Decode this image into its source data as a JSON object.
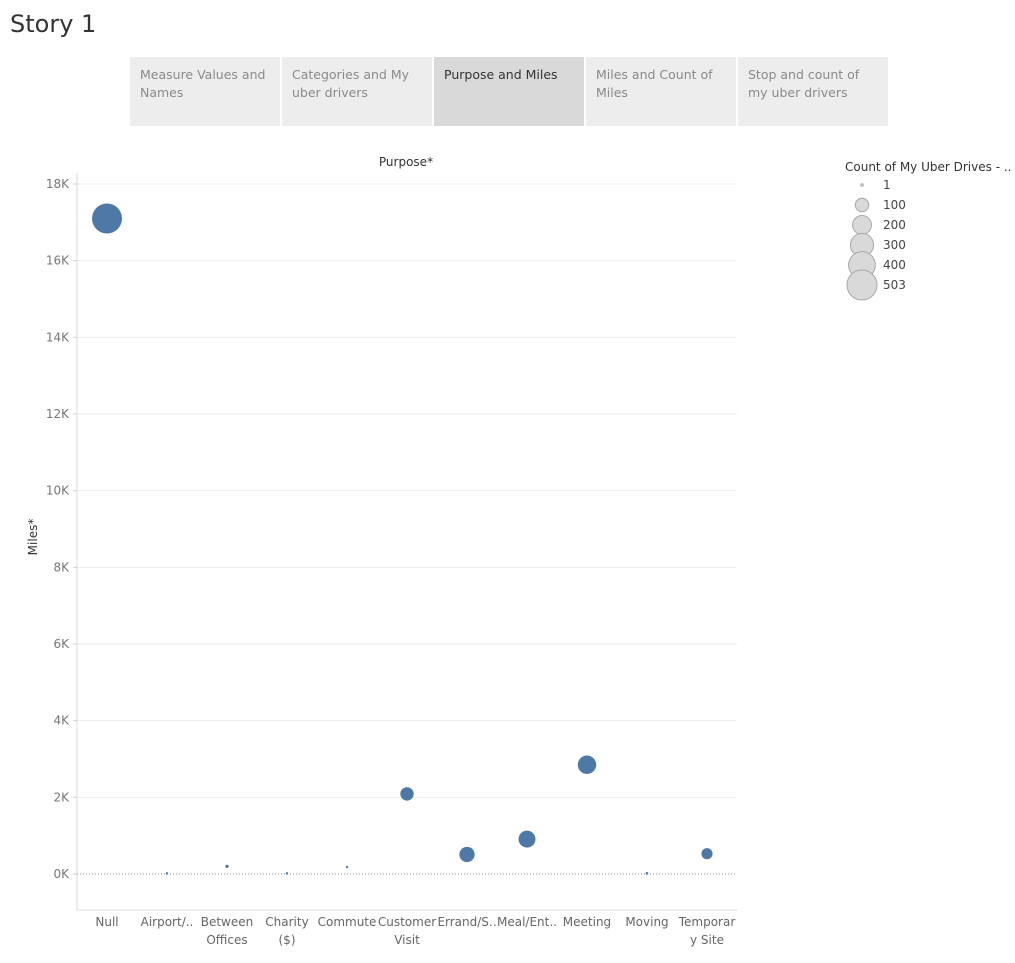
{
  "story": {
    "title": "Story 1"
  },
  "tabs": [
    {
      "label": "Measure Values and Names",
      "active": false
    },
    {
      "label": "Categories and My uber drivers",
      "active": false
    },
    {
      "label": "Purpose and Miles",
      "active": true
    },
    {
      "label": "Miles and Count of Miles",
      "active": false
    },
    {
      "label": "Stop and count of my uber drivers",
      "active": false
    }
  ],
  "colors": {
    "mark": "#4e79a7",
    "legend_fill": "#d9d9d9",
    "legend_stroke": "#a8a8a8",
    "grid": "#eeeeee"
  },
  "chart_data": {
    "type": "scatter",
    "title": "Purpose*",
    "xlabel": "",
    "ylabel": "Miles*",
    "ylim": [
      -900,
      18000
    ],
    "yticks": [
      0,
      2000,
      4000,
      6000,
      8000,
      10000,
      12000,
      14000,
      16000,
      18000
    ],
    "ytick_labels": [
      "0K",
      "2K",
      "4K",
      "6K",
      "8K",
      "10K",
      "12K",
      "14K",
      "16K",
      "18K"
    ],
    "grid": true,
    "categories": [
      [
        "Null"
      ],
      [
        "Airport/.."
      ],
      [
        "Between",
        "Offices"
      ],
      [
        "Charity",
        "($)"
      ],
      [
        "Commute"
      ],
      [
        "Customer",
        "Visit"
      ],
      [
        "Errand/S.."
      ],
      [
        "Meal/Ent.."
      ],
      [
        "Meeting"
      ],
      [
        "Moving"
      ],
      [
        "Temporar",
        "y Site"
      ]
    ],
    "y": [
      17100,
      16,
      200,
      16,
      180,
      2090,
      510,
      910,
      2850,
      18,
      530
    ],
    "size": [
      503,
      2,
      6,
      1,
      1,
      100,
      130,
      160,
      190,
      4,
      70
    ],
    "legend": {
      "title": "Count of My Uber Drives - ..",
      "placement": "top-right",
      "values": [
        1,
        100,
        200,
        300,
        400,
        503
      ],
      "labels": [
        "1",
        "100",
        "200",
        "300",
        "400",
        "503"
      ]
    }
  }
}
